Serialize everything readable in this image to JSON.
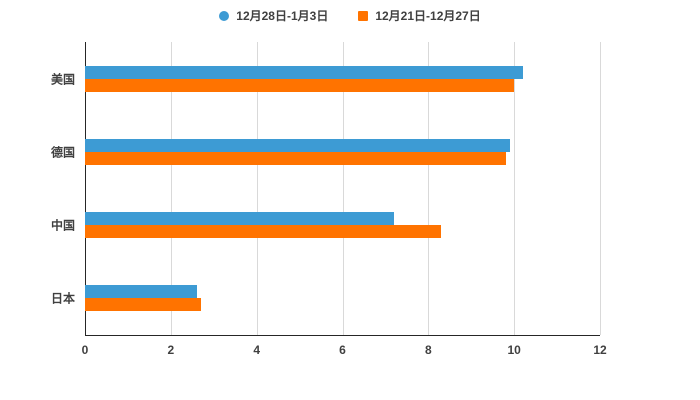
{
  "chart_data": {
    "type": "bar",
    "orientation": "horizontal",
    "title": "",
    "xlabel": "",
    "ylabel": "",
    "categories": [
      "美国",
      "德国",
      "中国",
      "日本"
    ],
    "series": [
      {
        "name": "12月28日-1月3日",
        "marker": "circle",
        "color": "#3d9bd4",
        "values": [
          10.2,
          9.9,
          7.2,
          2.6
        ]
      },
      {
        "name": "12月21日-12月27日",
        "marker": "square",
        "color": "#ff7300",
        "values": [
          10.0,
          9.8,
          8.3,
          2.7
        ]
      }
    ],
    "xlim": [
      0,
      12
    ],
    "xticks": [
      0,
      2,
      4,
      6,
      8,
      10,
      12
    ],
    "grid": true,
    "legend_position": "top"
  },
  "colors": {
    "background": "#ffffff",
    "gridline": "#d9d9d9",
    "axis": "#262626",
    "text": "#404040"
  }
}
